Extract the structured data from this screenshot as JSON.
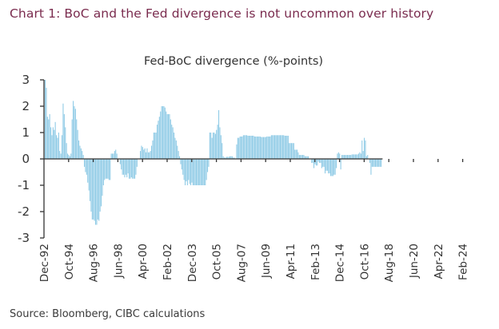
{
  "header": {
    "title": "Chart 1: BoC and the Fed divergence is not uncommon over history",
    "title_color": "#7a2b4e"
  },
  "footer": {
    "source": "Source: Bloomberg, CIBC calculations"
  },
  "chart_data": {
    "type": "bar",
    "title": "Fed-BoC divergence (%-points)",
    "xlabel": "",
    "ylabel": "",
    "ylim": [
      -3,
      3
    ],
    "yticks": [
      3,
      2,
      1,
      0,
      -1,
      -2,
      -3
    ],
    "xtick_labels": [
      "Dec-92",
      "Oct-94",
      "Aug-96",
      "Jun-98",
      "Apr-00",
      "Feb-02",
      "Dec-03",
      "Oct-05",
      "Aug-07",
      "Jun-09",
      "Apr-11",
      "Feb-13",
      "Dec-14",
      "Oct-16",
      "Aug-18",
      "Jun-20",
      "Apr-22",
      "Feb-24"
    ],
    "frequency": "monthly",
    "start": "Dec-92",
    "bar_color": "#8fcbe6",
    "grid": false,
    "legend": "none",
    "series": [
      {
        "name": "Fed-BoC divergence",
        "segments": [
          {
            "months": 1,
            "value": 3.0
          },
          {
            "months": 1,
            "value": 2.7
          },
          {
            "months": 1,
            "value": 1.6
          },
          {
            "months": 1,
            "value": 1.5
          },
          {
            "months": 1,
            "value": 1.7
          },
          {
            "months": 1,
            "value": 1.2
          },
          {
            "months": 1,
            "value": 0.9
          },
          {
            "months": 1,
            "value": 1.2
          },
          {
            "months": 1,
            "value": 1.1
          },
          {
            "months": 1,
            "value": 1.4
          },
          {
            "months": 1,
            "value": 0.9
          },
          {
            "months": 1,
            "value": 0.8
          },
          {
            "months": 1,
            "value": 1.0
          },
          {
            "months": 1,
            "value": 0.3
          },
          {
            "months": 1,
            "value": 0.2
          },
          {
            "months": 1,
            "value": 0.9
          },
          {
            "months": 1,
            "value": 2.1
          },
          {
            "months": 1,
            "value": 1.7
          },
          {
            "months": 1,
            "value": 1.2
          },
          {
            "months": 1,
            "value": 0.6
          },
          {
            "months": 1,
            "value": 0.2
          },
          {
            "months": 1,
            "value": 0.15
          },
          {
            "months": 1,
            "value": 0.1
          },
          {
            "months": 1,
            "value": 0.2
          },
          {
            "months": 1,
            "value": 1.5
          },
          {
            "months": 1,
            "value": 2.2
          },
          {
            "months": 1,
            "value": 2.0
          },
          {
            "months": 1,
            "value": 1.9
          },
          {
            "months": 1,
            "value": 1.5
          },
          {
            "months": 1,
            "value": 1.1
          },
          {
            "months": 1,
            "value": 0.7
          },
          {
            "months": 1,
            "value": 0.5
          },
          {
            "months": 1,
            "value": 0.4
          },
          {
            "months": 1,
            "value": 0.3
          },
          {
            "months": 1,
            "value": 0.15
          },
          {
            "months": 1,
            "value": -0.3
          },
          {
            "months": 1,
            "value": -0.5
          },
          {
            "months": 1,
            "value": -0.6
          },
          {
            "months": 1,
            "value": -0.9
          },
          {
            "months": 1,
            "value": -1.2
          },
          {
            "months": 1,
            "value": -1.6
          },
          {
            "months": 1,
            "value": -2.0
          },
          {
            "months": 2,
            "value": -2.3
          },
          {
            "months": 1,
            "value": -2.35
          },
          {
            "months": 2,
            "value": -2.5
          },
          {
            "months": 1,
            "value": -2.3
          },
          {
            "months": 1,
            "value": -2.35
          },
          {
            "months": 1,
            "value": -2.0
          },
          {
            "months": 1,
            "value": -1.8
          },
          {
            "months": 1,
            "value": -1.4
          },
          {
            "months": 1,
            "value": -1.0
          },
          {
            "months": 1,
            "value": -0.8
          },
          {
            "months": 3,
            "value": -0.75
          },
          {
            "months": 2,
            "value": -0.8
          },
          {
            "months": 3,
            "value": 0.2
          },
          {
            "months": 1,
            "value": 0.3
          },
          {
            "months": 1,
            "value": 0.35
          },
          {
            "months": 1,
            "value": 0.2
          },
          {
            "months": 2,
            "value": 0.0
          },
          {
            "months": 1,
            "value": -0.2
          },
          {
            "months": 1,
            "value": -0.4
          },
          {
            "months": 2,
            "value": -0.6
          },
          {
            "months": 1,
            "value": -0.7
          },
          {
            "months": 1,
            "value": -0.6
          },
          {
            "months": 1,
            "value": -0.7
          },
          {
            "months": 1,
            "value": -0.55
          },
          {
            "months": 2,
            "value": -0.75
          },
          {
            "months": 1,
            "value": -0.7
          },
          {
            "months": 3,
            "value": -0.75
          },
          {
            "months": 1,
            "value": -0.6
          },
          {
            "months": 1,
            "value": -0.3
          },
          {
            "months": 2,
            "value": 0.0
          },
          {
            "months": 1,
            "value": 0.3
          },
          {
            "months": 1,
            "value": 0.5
          },
          {
            "months": 1,
            "value": 0.45
          },
          {
            "months": 1,
            "value": 0.35
          },
          {
            "months": 1,
            "value": 0.4
          },
          {
            "months": 1,
            "value": 0.25
          },
          {
            "months": 1,
            "value": 0.4
          },
          {
            "months": 2,
            "value": 0.25
          },
          {
            "months": 1,
            "value": 0.3
          },
          {
            "months": 1,
            "value": 0.5
          },
          {
            "months": 1,
            "value": 0.7
          },
          {
            "months": 1,
            "value": 1.0
          },
          {
            "months": 2,
            "value": 1.0
          },
          {
            "months": 1,
            "value": 1.3
          },
          {
            "months": 1,
            "value": 1.45
          },
          {
            "months": 1,
            "value": 1.6
          },
          {
            "months": 1,
            "value": 1.8
          },
          {
            "months": 3,
            "value": 2.0
          },
          {
            "months": 1,
            "value": 1.95
          },
          {
            "months": 1,
            "value": 1.8
          },
          {
            "months": 3,
            "value": 1.7
          },
          {
            "months": 1,
            "value": 1.5
          },
          {
            "months": 1,
            "value": 1.3
          },
          {
            "months": 1,
            "value": 1.2
          },
          {
            "months": 1,
            "value": 1.0
          },
          {
            "months": 1,
            "value": 0.8
          },
          {
            "months": 1,
            "value": 0.7
          },
          {
            "months": 1,
            "value": 0.5
          },
          {
            "months": 1,
            "value": 0.3
          },
          {
            "months": 1,
            "value": 0.1
          },
          {
            "months": 1,
            "value": -0.2
          },
          {
            "months": 1,
            "value": -0.4
          },
          {
            "months": 1,
            "value": -0.6
          },
          {
            "months": 1,
            "value": -0.8
          },
          {
            "months": 1,
            "value": -1.0
          },
          {
            "months": 1,
            "value": -0.85
          },
          {
            "months": 1,
            "value": -1.0
          },
          {
            "months": 1,
            "value": -0.8
          },
          {
            "months": 1,
            "value": -0.95
          },
          {
            "months": 1,
            "value": -1.0
          },
          {
            "months": 1,
            "value": -0.9
          },
          {
            "months": 12,
            "value": -1.0
          },
          {
            "months": 1,
            "value": -0.8
          },
          {
            "months": 1,
            "value": -0.5
          },
          {
            "months": 1,
            "value": -0.3
          },
          {
            "months": 2,
            "value": 1.0
          },
          {
            "months": 1,
            "value": 0.8
          },
          {
            "months": 2,
            "value": 1.0
          },
          {
            "months": 1,
            "value": 0.95
          },
          {
            "months": 1,
            "value": 1.1
          },
          {
            "months": 1,
            "value": 1.3
          },
          {
            "months": 1,
            "value": 1.85
          },
          {
            "months": 1,
            "value": 1.2
          },
          {
            "months": 1,
            "value": 0.9
          },
          {
            "months": 1,
            "value": 0.6
          },
          {
            "months": 1,
            "value": 0.1
          },
          {
            "months": 2,
            "value": 0.05
          },
          {
            "months": 3,
            "value": 0.08
          },
          {
            "months": 3,
            "value": 0.1
          },
          {
            "months": 2,
            "value": 0.05
          },
          {
            "months": 1,
            "value": 0.0
          },
          {
            "months": 1,
            "value": 0.55
          },
          {
            "months": 2,
            "value": 0.8
          },
          {
            "months": 3,
            "value": 0.85
          },
          {
            "months": 4,
            "value": 0.9
          },
          {
            "months": 6,
            "value": 0.88
          },
          {
            "months": 6,
            "value": 0.85
          },
          {
            "months": 5,
            "value": 0.83
          },
          {
            "months": 4,
            "value": 0.85
          },
          {
            "months": 12,
            "value": 0.9
          },
          {
            "months": 4,
            "value": 0.88
          },
          {
            "months": 5,
            "value": 0.6
          },
          {
            "months": 3,
            "value": 0.35
          },
          {
            "months": 1,
            "value": 0.25
          },
          {
            "months": 5,
            "value": 0.15
          },
          {
            "months": 4,
            "value": 0.1
          },
          {
            "months": 2,
            "value": 0.0
          },
          {
            "months": 2,
            "value": -0.15
          },
          {
            "months": 1,
            "value": -0.35
          },
          {
            "months": 1,
            "value": -0.2
          },
          {
            "months": 2,
            "value": -0.25
          },
          {
            "months": 1,
            "value": -0.1
          },
          {
            "months": 2,
            "value": -0.15
          },
          {
            "months": 1,
            "value": -0.35
          },
          {
            "months": 2,
            "value": -0.3
          },
          {
            "months": 1,
            "value": -0.55
          },
          {
            "months": 2,
            "value": -0.45
          },
          {
            "months": 2,
            "value": -0.55
          },
          {
            "months": 3,
            "value": -0.65
          },
          {
            "months": 2,
            "value": -0.6
          },
          {
            "months": 1,
            "value": -0.35
          },
          {
            "months": 1,
            "value": 0.2
          },
          {
            "months": 1,
            "value": 0.25
          },
          {
            "months": 1,
            "value": 0.2
          },
          {
            "months": 1,
            "value": -0.4
          },
          {
            "months": 1,
            "value": 0.15
          },
          {
            "months": 8,
            "value": 0.15
          },
          {
            "months": 6,
            "value": 0.17
          },
          {
            "months": 1,
            "value": 0.2
          },
          {
            "months": 1,
            "value": 0.25
          },
          {
            "months": 1,
            "value": 0.2
          },
          {
            "months": 1,
            "value": 0.7
          },
          {
            "months": 1,
            "value": 0.3
          },
          {
            "months": 1,
            "value": 0.8
          },
          {
            "months": 1,
            "value": 0.7
          },
          {
            "months": 1,
            "value": 0.1
          },
          {
            "months": 1,
            "value": 0.15
          },
          {
            "months": 1,
            "value": 0.0
          },
          {
            "months": 1,
            "value": -0.15
          },
          {
            "months": 1,
            "value": -0.6
          },
          {
            "months": 9,
            "value": -0.3
          }
        ]
      }
    ]
  }
}
